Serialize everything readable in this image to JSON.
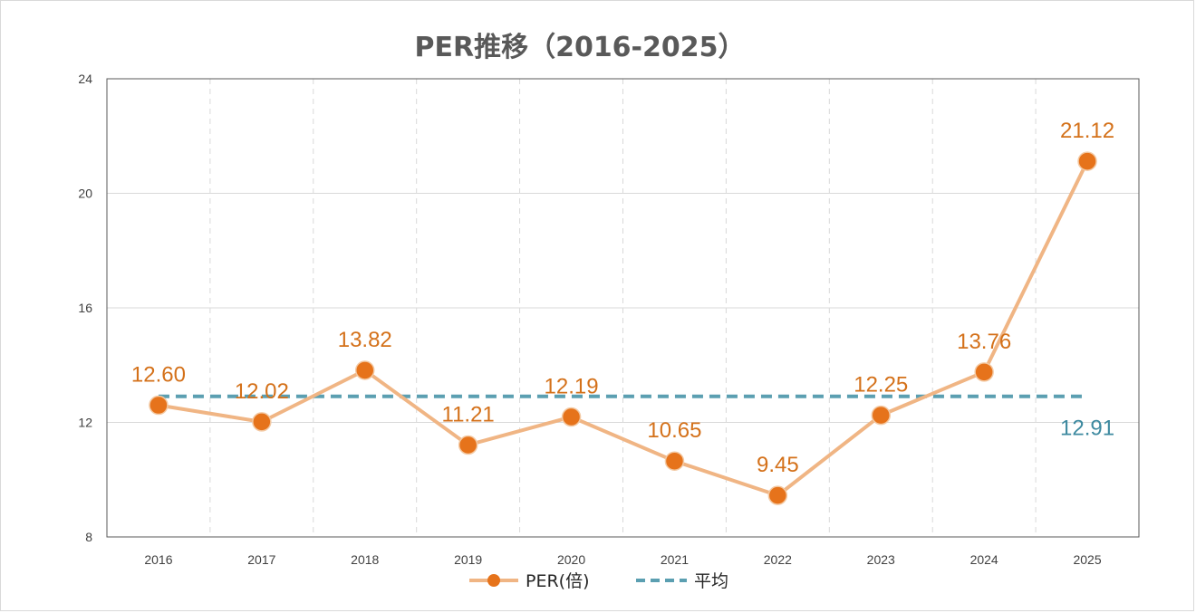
{
  "chart_data": {
    "type": "line",
    "title": "PER推移（2016-2025）",
    "categories": [
      "2016",
      "2017",
      "2018",
      "2019",
      "2020",
      "2021",
      "2022",
      "2023",
      "2024",
      "2025"
    ],
    "series": [
      {
        "name": "PER(倍)",
        "values": [
          12.6,
          12.02,
          13.82,
          11.21,
          12.19,
          10.65,
          9.45,
          12.25,
          13.76,
          21.12
        ],
        "labels": [
          "12.60",
          "12.02",
          "13.82",
          "11.21",
          "12.19",
          "10.65",
          "9.45",
          "12.25",
          "13.76",
          "21.12"
        ],
        "line_color": "#f0b584",
        "marker_color": "#e6731b"
      },
      {
        "name": "平均",
        "value": 12.91,
        "label": "12.91",
        "line_color": "#5b9fb1",
        "dashed": true
      }
    ],
    "ylim": [
      8,
      24
    ],
    "yticks": [
      "8",
      "12",
      "16",
      "20",
      "24"
    ],
    "ytick_values": [
      8,
      12,
      16,
      20,
      24
    ],
    "grid": true,
    "legend_position": "bottom"
  }
}
